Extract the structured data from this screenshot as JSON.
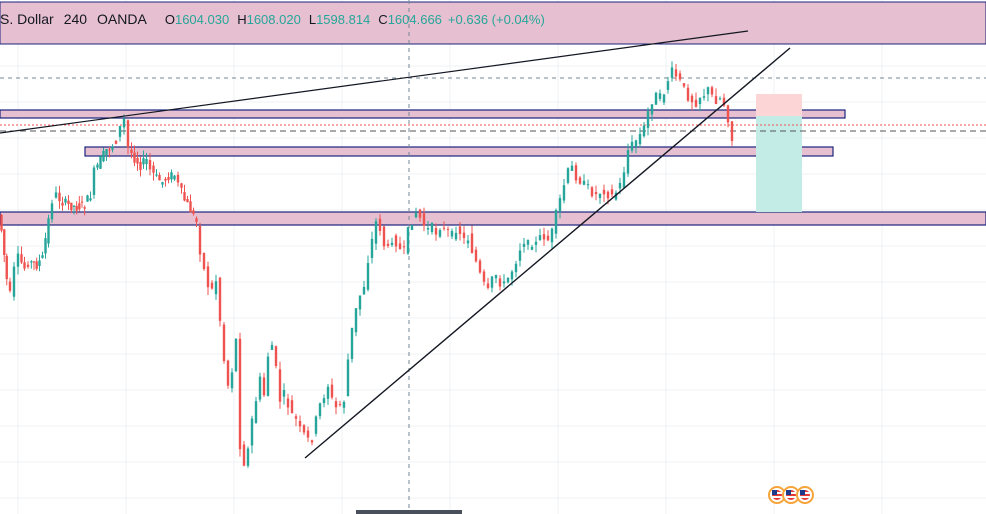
{
  "legend": {
    "symbol": "S. Dollar",
    "interval": "240",
    "source": "OANDA",
    "open_label": "O",
    "open": "1604.030",
    "high_label": "H",
    "high": "1608.020",
    "low_label": "L",
    "low": "1598.814",
    "close_label": "C",
    "close": "1604.666",
    "change": "+0.636 (+0.04%)"
  },
  "colors": {
    "up": "#26a69a",
    "down": "#ef5350",
    "zone_fill": "#e6c0d0",
    "zone_border": "#1a237e",
    "grid": "#eef0f3",
    "stop_fill": "#fcd6d6",
    "target_fill": "#c4ece7"
  },
  "events_icons": [
    "us-flag-icon",
    "us-flag-icon",
    "us-flag-icon"
  ],
  "chart_data": {
    "type": "candlestick",
    "grid": true,
    "y_range_px_reference": "price axis not shown",
    "candles_close_path": [
      [
        0,
        215
      ],
      [
        3,
        230
      ],
      [
        8,
        280
      ],
      [
        12,
        295
      ],
      [
        16,
        270
      ],
      [
        20,
        258
      ],
      [
        26,
        268
      ],
      [
        30,
        262
      ],
      [
        38,
        265
      ],
      [
        44,
        258
      ],
      [
        50,
        220
      ],
      [
        54,
        200
      ],
      [
        58,
        195
      ],
      [
        64,
        202
      ],
      [
        70,
        205
      ],
      [
        78,
        207
      ],
      [
        86,
        205
      ],
      [
        92,
        195
      ],
      [
        96,
        172
      ],
      [
        102,
        160
      ],
      [
        108,
        150
      ],
      [
        114,
        145
      ],
      [
        118,
        140
      ],
      [
        122,
        128
      ],
      [
        126,
        120
      ],
      [
        130,
        148
      ],
      [
        136,
        158
      ],
      [
        142,
        165
      ],
      [
        148,
        160
      ],
      [
        152,
        170
      ],
      [
        158,
        178
      ],
      [
        164,
        182
      ],
      [
        170,
        176
      ],
      [
        176,
        175
      ],
      [
        180,
        185
      ],
      [
        186,
        200
      ],
      [
        192,
        210
      ],
      [
        198,
        222
      ],
      [
        202,
        250
      ],
      [
        206,
        270
      ],
      [
        210,
        285
      ],
      [
        214,
        290
      ],
      [
        218,
        280
      ],
      [
        222,
        320
      ],
      [
        226,
        360
      ],
      [
        230,
        385
      ],
      [
        234,
        370
      ],
      [
        238,
        340
      ],
      [
        242,
        445
      ],
      [
        246,
        462
      ],
      [
        250,
        450
      ],
      [
        254,
        420
      ],
      [
        258,
        400
      ],
      [
        262,
        380
      ],
      [
        266,
        395
      ],
      [
        270,
        355
      ],
      [
        274,
        345
      ],
      [
        278,
        370
      ],
      [
        282,
        400
      ],
      [
        286,
        395
      ],
      [
        290,
        405
      ],
      [
        294,
        415
      ],
      [
        298,
        420
      ],
      [
        302,
        430
      ],
      [
        306,
        435
      ],
      [
        310,
        440
      ],
      [
        314,
        438
      ],
      [
        318,
        420
      ],
      [
        322,
        405
      ],
      [
        326,
        395
      ],
      [
        330,
        385
      ],
      [
        334,
        400
      ],
      [
        338,
        408
      ],
      [
        342,
        405
      ],
      [
        346,
        400
      ],
      [
        350,
        360
      ],
      [
        354,
        330
      ],
      [
        358,
        310
      ],
      [
        362,
        295
      ],
      [
        366,
        285
      ],
      [
        370,
        260
      ],
      [
        374,
        240
      ],
      [
        378,
        222
      ],
      [
        382,
        228
      ],
      [
        386,
        245
      ],
      [
        390,
        250
      ],
      [
        394,
        238
      ],
      [
        398,
        242
      ],
      [
        402,
        250
      ],
      [
        406,
        252
      ],
      [
        410,
        232
      ],
      [
        414,
        220
      ],
      [
        418,
        212
      ],
      [
        422,
        218
      ],
      [
        426,
        225
      ],
      [
        430,
        230
      ],
      [
        434,
        228
      ],
      [
        438,
        232
      ],
      [
        442,
        226
      ],
      [
        446,
        230
      ],
      [
        450,
        232
      ],
      [
        454,
        236
      ],
      [
        458,
        228
      ],
      [
        462,
        232
      ],
      [
        466,
        240
      ],
      [
        470,
        238
      ],
      [
        474,
        250
      ],
      [
        478,
        262
      ],
      [
        482,
        275
      ],
      [
        486,
        285
      ],
      [
        490,
        292
      ],
      [
        494,
        280
      ],
      [
        498,
        275
      ],
      [
        502,
        282
      ],
      [
        506,
        285
      ],
      [
        510,
        278
      ],
      [
        514,
        270
      ],
      [
        518,
        260
      ],
      [
        522,
        248
      ],
      [
        526,
        240
      ],
      [
        530,
        245
      ],
      [
        534,
        242
      ],
      [
        538,
        244
      ],
      [
        542,
        238
      ],
      [
        546,
        236
      ],
      [
        550,
        240
      ],
      [
        554,
        232
      ],
      [
        558,
        215
      ],
      [
        562,
        200
      ],
      [
        566,
        185
      ],
      [
        570,
        172
      ],
      [
        574,
        168
      ],
      [
        578,
        176
      ],
      [
        582,
        180
      ],
      [
        586,
        185
      ],
      [
        590,
        188
      ],
      [
        594,
        192
      ],
      [
        598,
        195
      ],
      [
        602,
        192
      ],
      [
        606,
        190
      ],
      [
        610,
        194
      ],
      [
        614,
        196
      ],
      [
        618,
        192
      ],
      [
        622,
        185
      ],
      [
        626,
        170
      ],
      [
        630,
        150
      ],
      [
        634,
        145
      ],
      [
        638,
        140
      ],
      [
        642,
        135
      ],
      [
        646,
        128
      ],
      [
        650,
        112
      ],
      [
        654,
        100
      ],
      [
        658,
        96
      ],
      [
        662,
        98
      ],
      [
        666,
        92
      ],
      [
        670,
        80
      ],
      [
        674,
        72
      ],
      [
        678,
        76
      ],
      [
        682,
        82
      ],
      [
        686,
        90
      ],
      [
        690,
        96
      ],
      [
        694,
        100
      ],
      [
        698,
        102
      ],
      [
        702,
        96
      ],
      [
        706,
        94
      ],
      [
        710,
        90
      ],
      [
        714,
        96
      ],
      [
        718,
        100
      ],
      [
        722,
        98
      ],
      [
        726,
        104
      ],
      [
        730,
        118
      ],
      [
        734,
        140
      ]
    ]
  }
}
